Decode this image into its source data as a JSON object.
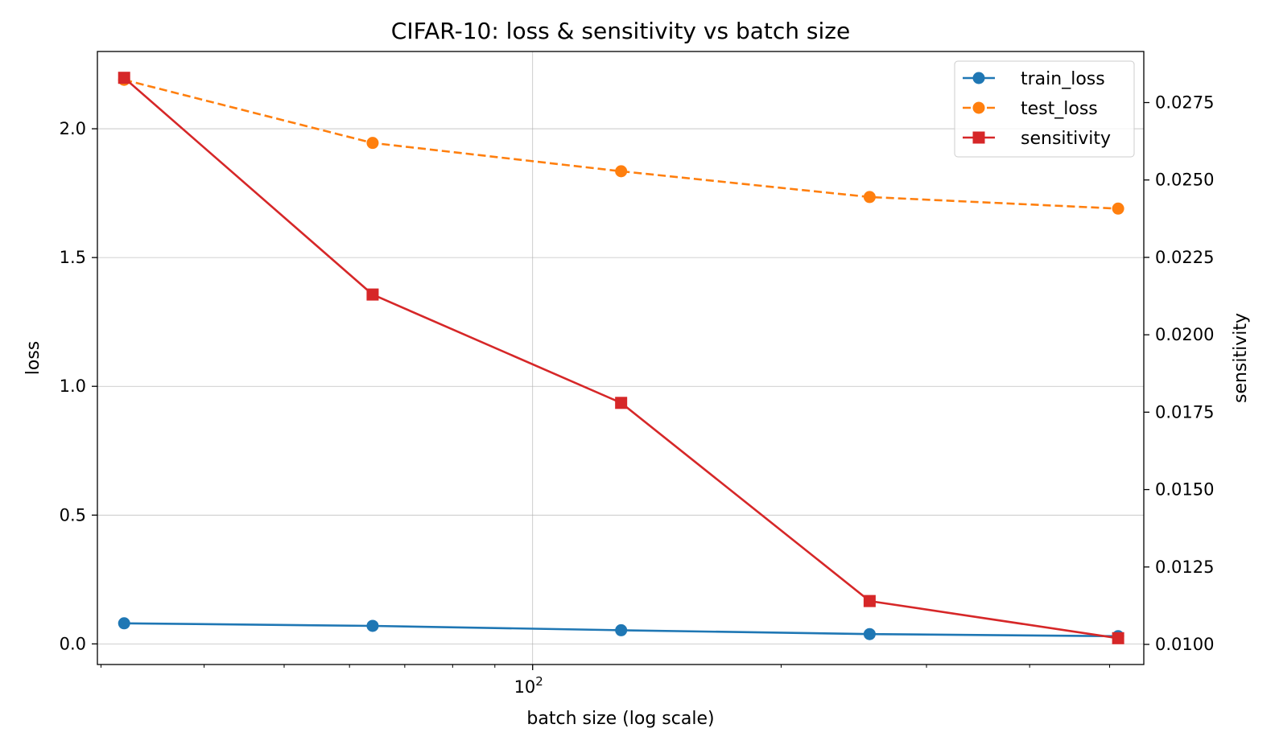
{
  "chart_data": {
    "type": "line",
    "title": "CIFAR-10: loss & sensitivity vs batch size",
    "xlabel": "batch size (log scale)",
    "xscale": "log",
    "x": [
      32,
      64,
      128,
      256,
      512
    ],
    "xlim": [
      29.7,
      550
    ],
    "x_major_ticks": [
      {
        "value": 100,
        "base": "10",
        "exp": "2"
      }
    ],
    "x_minor_ticks": [
      30,
      40,
      50,
      60,
      70,
      80,
      90,
      200,
      300,
      400,
      500
    ],
    "left_axis": {
      "label": "loss",
      "label_color": "#1f77b4",
      "ylim": [
        -0.08,
        2.3
      ],
      "ticks": [
        0.0,
        0.5,
        1.0,
        1.5,
        2.0
      ],
      "tick_labels": [
        "0.0",
        "0.5",
        "1.0",
        "1.5",
        "2.0"
      ]
    },
    "right_axis": {
      "label": "sensitivity",
      "label_color": "#d62728",
      "ylim": [
        0.00935,
        0.02915
      ],
      "ticks": [
        0.01,
        0.0125,
        0.015,
        0.0175,
        0.02,
        0.0225,
        0.025,
        0.0275
      ],
      "tick_labels": [
        "0.0100",
        "0.0125",
        "0.0150",
        "0.0175",
        "0.0200",
        "0.0225",
        "0.0250",
        "0.0275"
      ]
    },
    "series": [
      {
        "name": "train_loss",
        "axis": "left",
        "color": "#1f77b4",
        "marker": "circle",
        "line_style": "solid",
        "values": [
          0.08,
          0.07,
          0.053,
          0.038,
          0.03
        ]
      },
      {
        "name": "test_loss",
        "axis": "left",
        "color": "#ff7f0e",
        "marker": "circle",
        "line_style": "dashed",
        "values": [
          2.19,
          1.945,
          1.835,
          1.735,
          1.69
        ]
      },
      {
        "name": "sensitivity",
        "axis": "right",
        "color": "#d62728",
        "marker": "square",
        "line_style": "solid",
        "values": [
          0.0283,
          0.0213,
          0.0178,
          0.0114,
          0.0102
        ]
      }
    ],
    "grid": true,
    "legend_position": "top-right"
  }
}
